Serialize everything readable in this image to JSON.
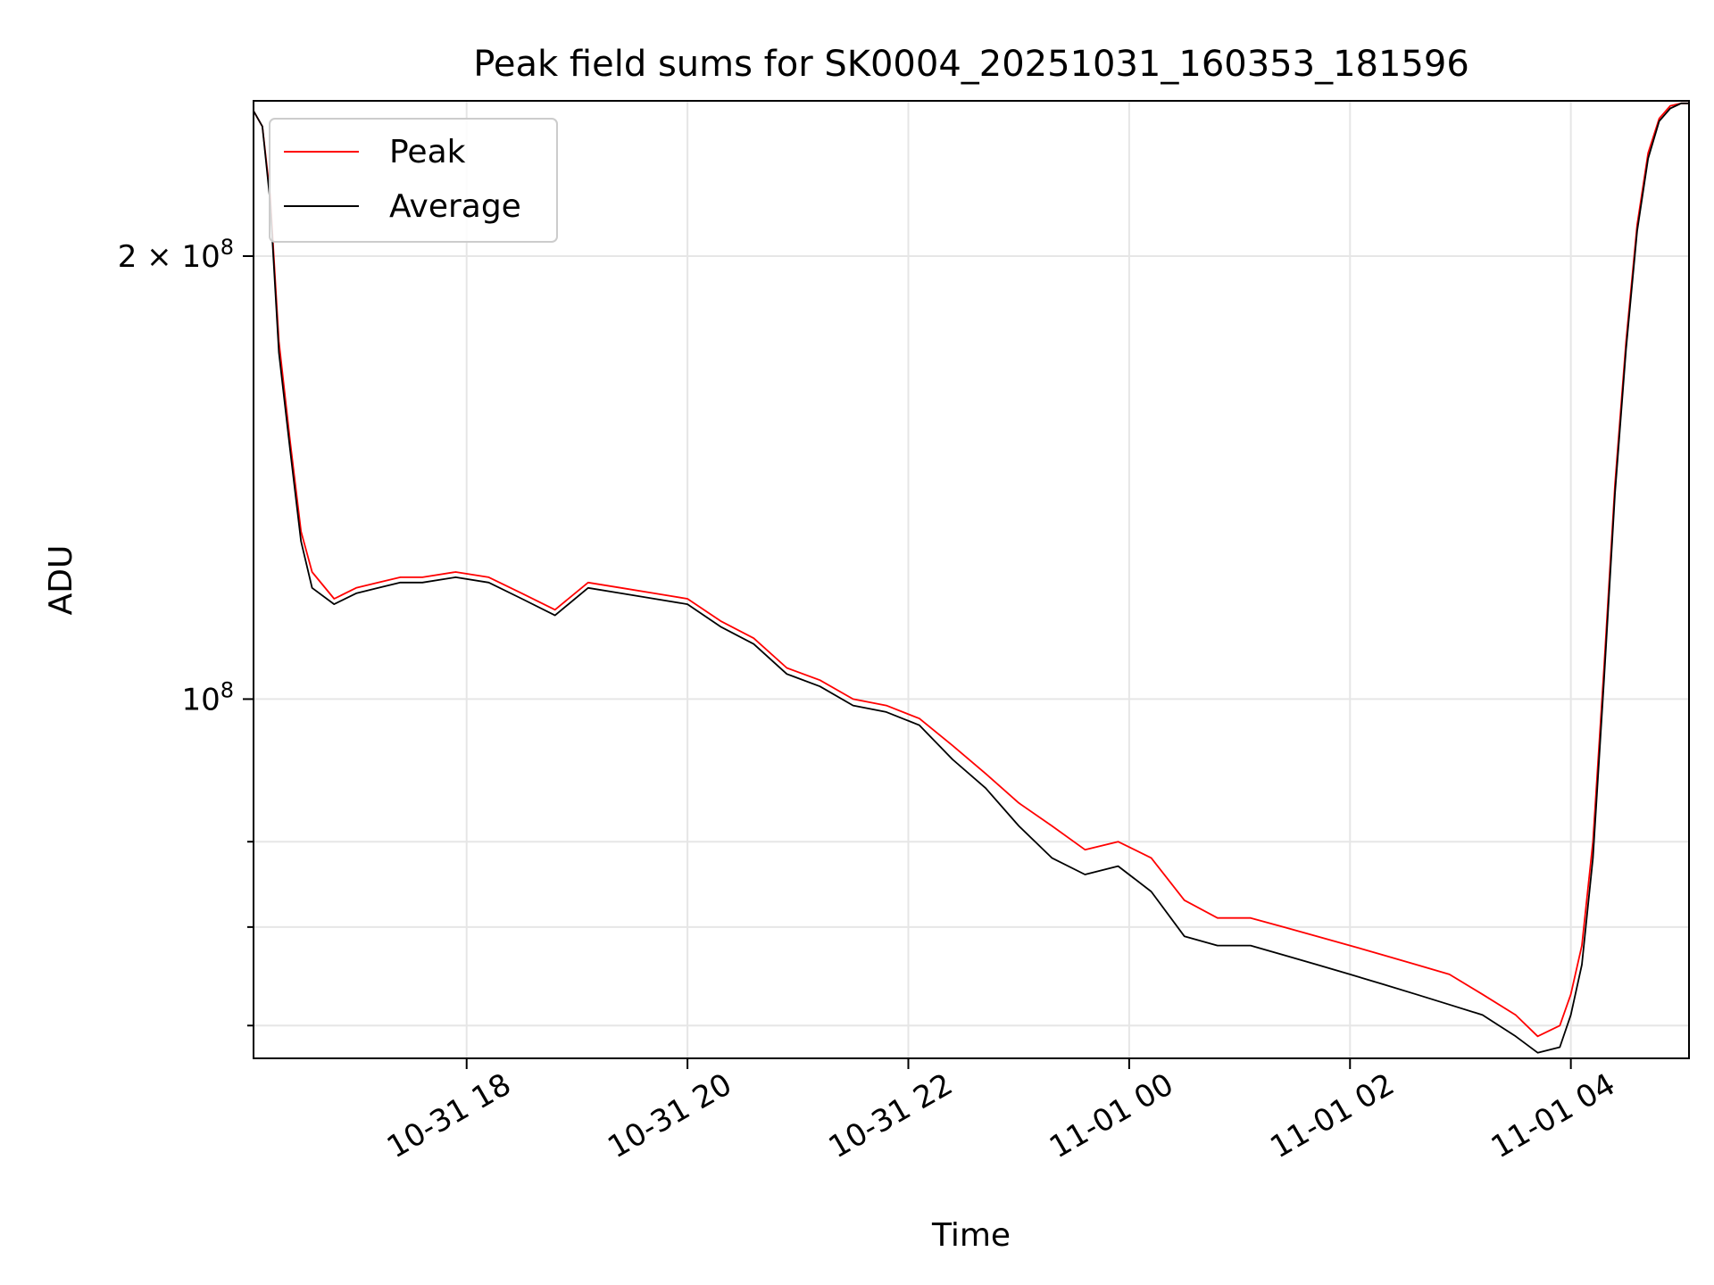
{
  "chart_data": {
    "type": "line",
    "title": "Peak field sums for SK0004_20251031_160353_181596",
    "xlabel": "Time",
    "ylabel": "ADU",
    "y_scale": "log",
    "ylim": [
      57000000,
      255000000
    ],
    "xlim_hours_from_16": [
      0.07,
      13.07
    ],
    "x_ticks": [
      {
        "hour": 2,
        "label": "10-31 18"
      },
      {
        "hour": 4,
        "label": "10-31 20"
      },
      {
        "hour": 6,
        "label": "10-31 22"
      },
      {
        "hour": 8,
        "label": "11-01 00"
      },
      {
        "hour": 10,
        "label": "11-01 02"
      },
      {
        "hour": 12,
        "label": "11-01 04"
      }
    ],
    "y_major_ticks": [
      {
        "value": 100000000,
        "base": "10",
        "exp": "8"
      },
      {
        "value": 200000000,
        "base": "2 × 10",
        "exp": "8"
      }
    ],
    "y_minor_ticks": [
      60000000,
      70000000,
      80000000
    ],
    "grid": true,
    "legend": {
      "position": "top-left"
    },
    "series": [
      {
        "name": "Peak",
        "color": "#ff0000",
        "x_hours": [
          0.07,
          0.15,
          0.22,
          0.3,
          0.4,
          0.5,
          0.6,
          0.8,
          1.0,
          1.2,
          1.4,
          1.6,
          1.9,
          2.2,
          2.5,
          2.8,
          3.1,
          3.4,
          3.7,
          4.0,
          4.3,
          4.6,
          4.9,
          5.2,
          5.5,
          5.8,
          6.1,
          6.4,
          6.7,
          7.0,
          7.3,
          7.6,
          7.9,
          8.2,
          8.5,
          8.8,
          9.1,
          9.4,
          9.7,
          10.0,
          10.3,
          10.6,
          10.9,
          11.2,
          11.5,
          11.7,
          11.9,
          12.0,
          12.1,
          12.2,
          12.3,
          12.4,
          12.5,
          12.6,
          12.7,
          12.8,
          12.9,
          13.0,
          13.07
        ],
        "values": [
          251000000,
          245000000,
          220000000,
          175000000,
          150000000,
          130000000,
          122000000,
          117000000,
          119000000,
          120000000,
          121000000,
          121000000,
          122000000,
          121000000,
          118000000,
          115000000,
          120000000,
          119000000,
          118000000,
          117000000,
          113000000,
          110000000,
          105000000,
          103000000,
          100000000,
          99000000,
          97000000,
          93000000,
          89000000,
          85000000,
          82000000,
          79000000,
          80000000,
          78000000,
          73000000,
          71000000,
          71000000,
          70000000,
          69000000,
          68000000,
          67000000,
          66000000,
          65000000,
          63000000,
          61000000,
          59000000,
          60000000,
          63000000,
          68000000,
          80000000,
          105000000,
          140000000,
          175000000,
          210000000,
          235000000,
          248000000,
          253000000,
          254000000,
          254000000
        ]
      },
      {
        "name": "Average",
        "color": "#000000",
        "x_hours": [
          0.07,
          0.15,
          0.22,
          0.3,
          0.4,
          0.5,
          0.6,
          0.8,
          1.0,
          1.2,
          1.4,
          1.6,
          1.9,
          2.2,
          2.5,
          2.8,
          3.1,
          3.4,
          3.7,
          4.0,
          4.3,
          4.6,
          4.9,
          5.2,
          5.5,
          5.8,
          6.1,
          6.4,
          6.7,
          7.0,
          7.3,
          7.6,
          7.9,
          8.2,
          8.5,
          8.8,
          9.1,
          9.4,
          9.7,
          10.0,
          10.3,
          10.6,
          10.9,
          11.2,
          11.5,
          11.7,
          11.9,
          12.0,
          12.1,
          12.2,
          12.3,
          12.4,
          12.5,
          12.6,
          12.7,
          12.8,
          12.9,
          13.0,
          13.07
        ],
        "values": [
          251000000,
          245000000,
          218000000,
          172000000,
          148000000,
          128000000,
          119000000,
          116000000,
          118000000,
          119000000,
          120000000,
          120000000,
          121000000,
          120000000,
          117000000,
          114000000,
          119000000,
          118000000,
          117000000,
          116000000,
          112000000,
          109000000,
          104000000,
          102000000,
          99000000,
          98000000,
          96000000,
          91000000,
          87000000,
          82000000,
          78000000,
          76000000,
          77000000,
          74000000,
          69000000,
          68000000,
          68000000,
          67000000,
          66000000,
          65000000,
          64000000,
          63000000,
          62000000,
          61000000,
          59000000,
          57500000,
          58000000,
          61000000,
          66000000,
          78000000,
          103000000,
          138000000,
          173000000,
          208000000,
          233000000,
          247000000,
          252000000,
          254000000,
          254000000
        ]
      }
    ]
  }
}
